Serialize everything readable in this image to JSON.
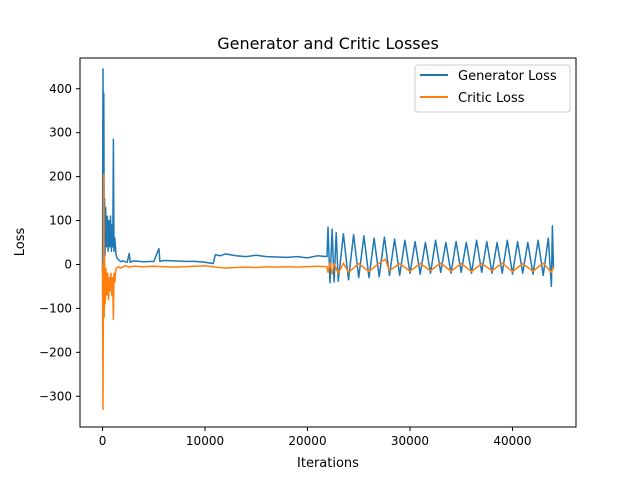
{
  "chart_data": {
    "type": "line",
    "title": "Generator and Critic Losses",
    "xlabel": "Iterations",
    "ylabel": "Loss",
    "xlim": [
      -2200,
      46200
    ],
    "ylim": [
      -370,
      470
    ],
    "xticks": [
      0,
      10000,
      20000,
      30000,
      40000
    ],
    "xtick_labels": [
      "0",
      "10000",
      "20000",
      "30000",
      "40000"
    ],
    "yticks": [
      -300,
      -200,
      -100,
      0,
      100,
      200,
      300,
      400
    ],
    "ytick_labels": [
      "−300",
      "−200",
      "−100",
      "0",
      "100",
      "200",
      "300",
      "400"
    ],
    "grid": false,
    "legend_position": "top-right",
    "series": [
      {
        "name": "Generator Loss",
        "color": "#1f77b4",
        "points": [
          [
            0,
            -20
          ],
          [
            40,
            445
          ],
          [
            80,
            10
          ],
          [
            120,
            390
          ],
          [
            160,
            50
          ],
          [
            200,
            150
          ],
          [
            240,
            20
          ],
          [
            300,
            130
          ],
          [
            380,
            40
          ],
          [
            460,
            110
          ],
          [
            540,
            30
          ],
          [
            620,
            100
          ],
          [
            700,
            40
          ],
          [
            780,
            110
          ],
          [
            860,
            30
          ],
          [
            940,
            90
          ],
          [
            1000,
            40
          ],
          [
            1060,
            285
          ],
          [
            1120,
            30
          ],
          [
            1200,
            60
          ],
          [
            1300,
            25
          ],
          [
            1400,
            15
          ],
          [
            1600,
            10
          ],
          [
            1800,
            6
          ],
          [
            2000,
            8
          ],
          [
            2400,
            5
          ],
          [
            2600,
            25
          ],
          [
            2700,
            5
          ],
          [
            3000,
            8
          ],
          [
            4000,
            6
          ],
          [
            5000,
            7
          ],
          [
            5500,
            36
          ],
          [
            5600,
            7
          ],
          [
            6000,
            9
          ],
          [
            7000,
            8
          ],
          [
            8000,
            7
          ],
          [
            9000,
            7
          ],
          [
            10000,
            5
          ],
          [
            10800,
            2
          ],
          [
            11000,
            22
          ],
          [
            11500,
            20
          ],
          [
            12000,
            24
          ],
          [
            13000,
            20
          ],
          [
            14000,
            18
          ],
          [
            15000,
            21
          ],
          [
            16000,
            18
          ],
          [
            17000,
            17
          ],
          [
            18000,
            16
          ],
          [
            19000,
            18
          ],
          [
            20000,
            15
          ],
          [
            21000,
            20
          ],
          [
            21900,
            18
          ],
          [
            22000,
            85
          ],
          [
            22200,
            -42
          ],
          [
            22400,
            80
          ],
          [
            22600,
            -40
          ],
          [
            22800,
            72
          ],
          [
            23000,
            -38
          ],
          [
            23500,
            70
          ],
          [
            24000,
            -35
          ],
          [
            24500,
            68
          ],
          [
            25000,
            -30
          ],
          [
            25500,
            65
          ],
          [
            26000,
            -30
          ],
          [
            26500,
            60
          ],
          [
            27000,
            -28
          ],
          [
            27500,
            62
          ],
          [
            28000,
            -25
          ],
          [
            28500,
            58
          ],
          [
            29000,
            -25
          ],
          [
            29500,
            55
          ],
          [
            30000,
            -20
          ],
          [
            30500,
            52
          ],
          [
            31000,
            -22
          ],
          [
            31500,
            50
          ],
          [
            32000,
            -20
          ],
          [
            32500,
            55
          ],
          [
            33000,
            -18
          ],
          [
            33500,
            50
          ],
          [
            34000,
            -20
          ],
          [
            34500,
            52
          ],
          [
            35000,
            -18
          ],
          [
            35500,
            50
          ],
          [
            36000,
            -20
          ],
          [
            36500,
            55
          ],
          [
            37000,
            -18
          ],
          [
            37500,
            52
          ],
          [
            38000,
            -20
          ],
          [
            38500,
            50
          ],
          [
            39000,
            -20
          ],
          [
            39500,
            55
          ],
          [
            40000,
            -22
          ],
          [
            40500,
            52
          ],
          [
            41000,
            -20
          ],
          [
            41500,
            50
          ],
          [
            42000,
            -22
          ],
          [
            42500,
            55
          ],
          [
            43000,
            -25
          ],
          [
            43500,
            60
          ],
          [
            43800,
            -50
          ],
          [
            43900,
            88
          ],
          [
            44000,
            -10
          ]
        ]
      },
      {
        "name": "Critic Loss",
        "color": "#ff7f0e",
        "points": [
          [
            0,
            0
          ],
          [
            40,
            -330
          ],
          [
            80,
            -40
          ],
          [
            120,
            205
          ],
          [
            160,
            -120
          ],
          [
            200,
            20
          ],
          [
            260,
            -90
          ],
          [
            340,
            -10
          ],
          [
            420,
            -70
          ],
          [
            500,
            -20
          ],
          [
            580,
            -80
          ],
          [
            660,
            -30
          ],
          [
            740,
            -60
          ],
          [
            820,
            -20
          ],
          [
            900,
            -70
          ],
          [
            980,
            -30
          ],
          [
            1060,
            -125
          ],
          [
            1120,
            -20
          ],
          [
            1200,
            -40
          ],
          [
            1300,
            -10
          ],
          [
            1500,
            -5
          ],
          [
            1800,
            -8
          ],
          [
            2200,
            -3
          ],
          [
            2600,
            -6
          ],
          [
            3000,
            -4
          ],
          [
            4000,
            -5
          ],
          [
            5000,
            -4
          ],
          [
            6000,
            -5
          ],
          [
            7000,
            -6
          ],
          [
            8000,
            -5
          ],
          [
            9000,
            -4
          ],
          [
            10000,
            -3
          ],
          [
            11000,
            -6
          ],
          [
            12000,
            -8
          ],
          [
            13000,
            -7
          ],
          [
            14000,
            -6
          ],
          [
            15000,
            -7
          ],
          [
            16000,
            -5
          ],
          [
            17000,
            -6
          ],
          [
            18000,
            -5
          ],
          [
            19000,
            -6
          ],
          [
            20000,
            -5
          ],
          [
            21000,
            -4
          ],
          [
            21900,
            -5
          ],
          [
            22000,
            -18
          ],
          [
            22200,
            5
          ],
          [
            22400,
            -22
          ],
          [
            22600,
            2
          ],
          [
            23000,
            -20
          ],
          [
            23500,
            3
          ],
          [
            24000,
            -18
          ],
          [
            25000,
            2
          ],
          [
            26000,
            -16
          ],
          [
            27000,
            3
          ],
          [
            27600,
            12
          ],
          [
            28000,
            -14
          ],
          [
            29000,
            2
          ],
          [
            30000,
            -15
          ],
          [
            31000,
            2
          ],
          [
            32000,
            -14
          ],
          [
            33000,
            3
          ],
          [
            34000,
            -15
          ],
          [
            35000,
            2
          ],
          [
            36000,
            -16
          ],
          [
            37000,
            2
          ],
          [
            38000,
            -14
          ],
          [
            39000,
            3
          ],
          [
            40000,
            -16
          ],
          [
            41000,
            2
          ],
          [
            42000,
            -15
          ],
          [
            43000,
            3
          ],
          [
            43800,
            -18
          ],
          [
            44000,
            -5
          ]
        ]
      }
    ]
  }
}
